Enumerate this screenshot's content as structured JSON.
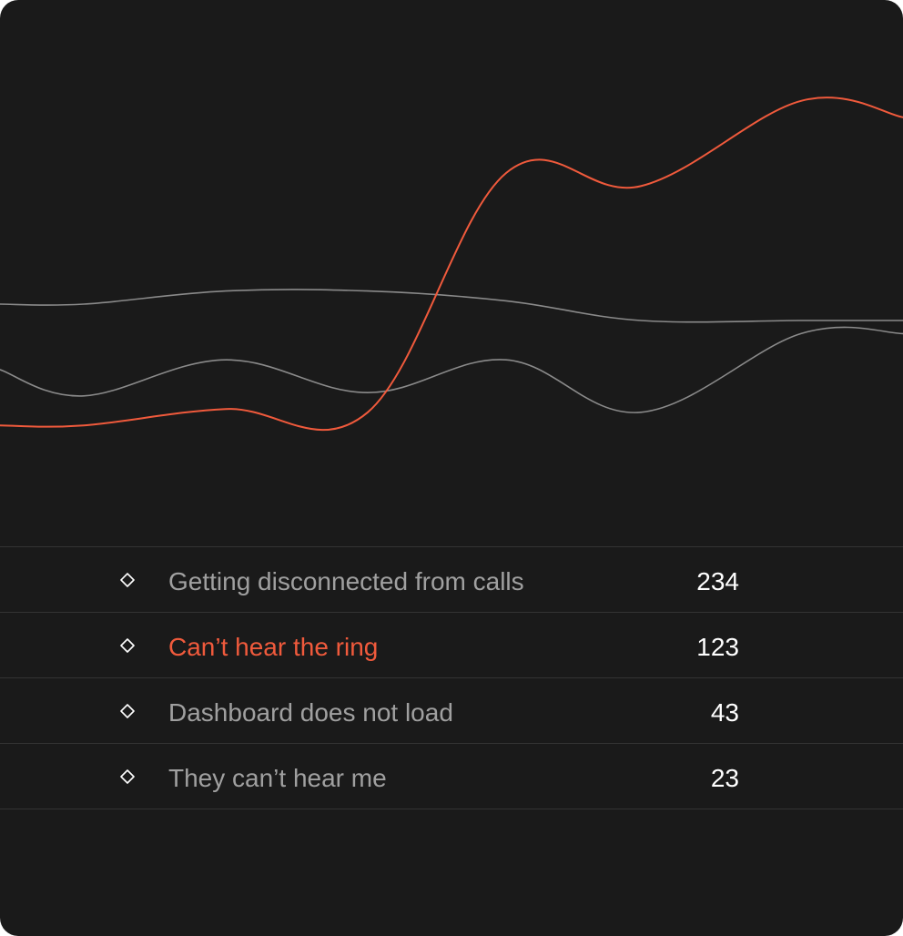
{
  "colors": {
    "background": "#1a1a1a",
    "accent": "#f05a3c",
    "muted_line": "#8a8a8a",
    "label": "#a0a0a0",
    "count": "#ffffff",
    "divider": "#333333"
  },
  "chart_data": {
    "type": "line",
    "grid": false,
    "series": [
      {
        "values": [
          18,
          18,
          23,
          22,
          95,
          91,
          117,
          112
        ],
        "color": "#f05a3c",
        "highlighted": true
      },
      {
        "values": [
          35,
          27,
          38,
          28,
          38,
          22,
          46,
          46
        ],
        "color": "#8a8a8a"
      },
      {
        "values": [
          55,
          55,
          59,
          59,
          56,
          50,
          50,
          50
        ],
        "color": "#8a8a8a"
      }
    ]
  },
  "issues": [
    {
      "label": "Getting disconnected from calls",
      "count": "234",
      "active": false,
      "icon": "diamond-outline-icon"
    },
    {
      "label": "Can’t hear the ring",
      "count": "123",
      "active": true,
      "icon": "diamond-outline-icon"
    },
    {
      "label": "Dashboard does not load",
      "count": "43",
      "active": false,
      "icon": "diamond-outline-icon"
    },
    {
      "label": "They can’t hear me",
      "count": "23",
      "active": false,
      "icon": "diamond-outline-icon"
    }
  ]
}
